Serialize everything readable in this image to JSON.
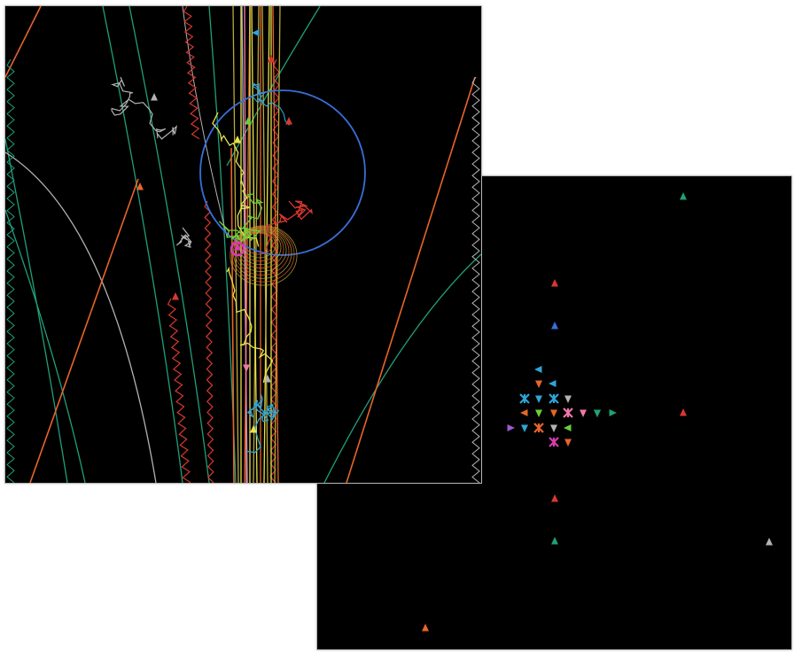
{
  "colors": {
    "background": "#000000",
    "page": "#ffffff",
    "orange": "#e8652a",
    "teal": "#1fa07a",
    "red": "#d8382f",
    "yellow": "#e9e24a",
    "olive": "#b9a93a",
    "gray": "#b3b3b3",
    "blue": "#3a6ed8",
    "cyan": "#2fa5d6",
    "green": "#6ccf3a",
    "pink": "#ee79a8",
    "magenta": "#d93bb0",
    "purple": "#9b5bd1"
  },
  "tracks_view": {
    "guide_circle": "blue",
    "markers": [
      {
        "color": "cyan",
        "dir": "left"
      },
      {
        "color": "orange",
        "dir": "up"
      },
      {
        "color": "gray",
        "dir": "up"
      },
      {
        "color": "green",
        "dir": "up"
      },
      {
        "color": "yellow",
        "dir": "up"
      },
      {
        "color": "red",
        "dir": "up"
      },
      {
        "color": "pink",
        "dir": "down"
      },
      {
        "color": "gray",
        "dir": "up"
      },
      {
        "color": "yellow",
        "dir": "up"
      },
      {
        "color": "red",
        "dir": "up"
      },
      {
        "color": "red",
        "dir": "up"
      },
      {
        "color": "magenta",
        "dir": "up"
      }
    ]
  },
  "hits_view": {
    "markers": [
      {
        "color": "teal",
        "dir": "up"
      },
      {
        "color": "red",
        "dir": "up"
      },
      {
        "color": "blue",
        "dir": "up"
      },
      {
        "color": "cyan",
        "dir": "left"
      },
      {
        "color": "orange",
        "dir": "down"
      },
      {
        "color": "cyan",
        "dir": "left"
      },
      {
        "color": "cyan",
        "dir": "cross"
      },
      {
        "color": "cyan",
        "dir": "down"
      },
      {
        "color": "cyan",
        "dir": "cross"
      },
      {
        "color": "gray",
        "dir": "down"
      },
      {
        "color": "orange",
        "dir": "left"
      },
      {
        "color": "green",
        "dir": "down"
      },
      {
        "color": "orange",
        "dir": "down"
      },
      {
        "color": "pink",
        "dir": "cross"
      },
      {
        "color": "pink",
        "dir": "down"
      },
      {
        "color": "green",
        "dir": "down"
      },
      {
        "color": "teal",
        "dir": "right"
      },
      {
        "color": "teal",
        "dir": "down"
      },
      {
        "color": "red",
        "dir": "up"
      },
      {
        "color": "purple",
        "dir": "right"
      },
      {
        "color": "cyan",
        "dir": "down"
      },
      {
        "color": "orange",
        "dir": "cross"
      },
      {
        "color": "gray",
        "dir": "down"
      },
      {
        "color": "green",
        "dir": "left"
      },
      {
        "color": "magenta",
        "dir": "cross"
      },
      {
        "color": "orange",
        "dir": "down"
      },
      {
        "color": "red",
        "dir": "up"
      },
      {
        "color": "teal",
        "dir": "up"
      },
      {
        "color": "gray",
        "dir": "up"
      },
      {
        "color": "orange",
        "dir": "up"
      }
    ]
  }
}
